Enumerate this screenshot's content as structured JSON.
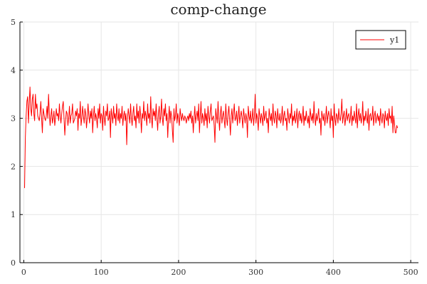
{
  "chart_data": {
    "type": "line",
    "title": "comp-change",
    "xlabel": "",
    "ylabel": "",
    "xlim": [
      -5,
      510
    ],
    "ylim": [
      0,
      5
    ],
    "xticks": [
      0,
      100,
      200,
      300,
      400,
      500
    ],
    "yticks": [
      0,
      1,
      2,
      3,
      4,
      5
    ],
    "grid": true,
    "legend_position": "top-right",
    "series": [
      {
        "name": "y1",
        "color": "#ff0000",
        "x_start": 1,
        "x_step": 1,
        "values": [
          1.55,
          2.6,
          3.05,
          3.35,
          3.45,
          2.9,
          3.3,
          3.65,
          3.2,
          3.05,
          3.4,
          3.5,
          3.1,
          2.95,
          3.5,
          3.2,
          3.3,
          3.05,
          3.0,
          2.95,
          3.1,
          3.35,
          3.0,
          2.7,
          3.2,
          3.1,
          3.0,
          2.95,
          3.05,
          3.25,
          3.0,
          3.5,
          3.1,
          2.85,
          3.05,
          3.2,
          2.9,
          3.0,
          3.15,
          2.85,
          3.0,
          3.2,
          3.05,
          3.1,
          2.95,
          3.3,
          3.05,
          2.9,
          3.1,
          3.25,
          3.35,
          3.0,
          2.65,
          2.95,
          3.15,
          3.1,
          2.85,
          3.0,
          3.25,
          2.9,
          3.05,
          3.1,
          3.3,
          2.9,
          2.95,
          3.0,
          3.15,
          3.05,
          3.2,
          2.75,
          3.1,
          3.0,
          3.35,
          2.85,
          3.0,
          3.25,
          3.05,
          2.9,
          3.2,
          3.1,
          2.8,
          3.0,
          3.3,
          3.05,
          2.9,
          3.15,
          3.0,
          3.2,
          2.7,
          3.05,
          3.25,
          2.95,
          3.1,
          3.0,
          2.8,
          3.2,
          3.0,
          3.3,
          2.9,
          3.1,
          3.05,
          2.75,
          3.25,
          3.0,
          2.85,
          3.15,
          3.05,
          3.3,
          2.95,
          3.0,
          3.15,
          2.6,
          3.2,
          3.05,
          2.9,
          3.25,
          3.0,
          3.1,
          2.85,
          3.3,
          3.05,
          2.95,
          3.2,
          2.9,
          3.1,
          3.0,
          3.25,
          2.85,
          3.05,
          3.15,
          2.95,
          3.1,
          2.45,
          3.0,
          3.2,
          3.05,
          2.9,
          3.3,
          3.0,
          2.85,
          3.1,
          3.25,
          2.95,
          3.05,
          2.8,
          3.3,
          3.0,
          3.15,
          2.9,
          3.25,
          3.05,
          2.7,
          3.1,
          3.0,
          3.35,
          2.95,
          3.15,
          3.05,
          2.85,
          3.3,
          3.0,
          3.1,
          2.9,
          3.45,
          3.0,
          2.8,
          3.2,
          3.05,
          3.15,
          2.95,
          3.3,
          3.0,
          2.75,
          3.1,
          3.25,
          2.9,
          3.05,
          3.4,
          3.0,
          2.85,
          3.2,
          3.05,
          3.3,
          2.95,
          3.1,
          2.6,
          3.0,
          3.25,
          2.9,
          3.15,
          3.05,
          2.75,
          2.5,
          3.2,
          2.95,
          3.05,
          3.3,
          2.9,
          3.1,
          3.0,
          2.85,
          3.2,
          3.05,
          2.95,
          3.1,
          3.0,
          2.95,
          3.05,
          3.0,
          2.9,
          3.0,
          3.05,
          2.95,
          3.1,
          3.0,
          3.15,
          2.9,
          3.05,
          2.7,
          3.0,
          3.25,
          2.9,
          3.05,
          3.15,
          2.95,
          3.3,
          2.7,
          3.05,
          3.35,
          2.9,
          3.1,
          3.0,
          2.85,
          3.2,
          2.95,
          3.1,
          2.8,
          3.25,
          3.05,
          2.9,
          3.15,
          3.3,
          2.95,
          3.0,
          3.05,
          2.85,
          2.5,
          3.2,
          3.05,
          2.9,
          3.35,
          3.0,
          2.75,
          3.1,
          3.25,
          2.9,
          3.05,
          3.15,
          2.95,
          2.8,
          3.3,
          3.0,
          2.85,
          3.1,
          3.25,
          2.95,
          2.65,
          3.05,
          3.2,
          2.9,
          3.1,
          3.3,
          2.95,
          3.0,
          3.15,
          2.85,
          3.05,
          3.25,
          2.9,
          3.05,
          3.15,
          3.0,
          2.8,
          3.2,
          3.05,
          2.9,
          3.1,
          3.0,
          2.6,
          3.25,
          3.05,
          2.95,
          3.15,
          2.9,
          3.0,
          3.2,
          2.85,
          3.05,
          3.5,
          2.9,
          3.1,
          3.0,
          2.75,
          3.2,
          3.05,
          2.9,
          3.1,
          3.0,
          2.85,
          3.25,
          2.95,
          3.05,
          3.15,
          2.9,
          3.0,
          2.7,
          3.2,
          3.05,
          2.95,
          3.1,
          2.85,
          3.3,
          3.0,
          2.9,
          3.15,
          3.05,
          2.8,
          3.2,
          3.0,
          2.95,
          3.1,
          2.9,
          3.0,
          3.25,
          2.85,
          3.05,
          3.15,
          2.95,
          3.0,
          2.75,
          3.2,
          3.05,
          2.9,
          3.1,
          3.0,
          3.3,
          2.85,
          3.05,
          2.95,
          3.15,
          2.9,
          3.0,
          3.2,
          2.8,
          3.05,
          3.15,
          2.95,
          3.1,
          2.9,
          3.0,
          3.25,
          2.85,
          3.05,
          2.95,
          3.15,
          3.0,
          2.9,
          3.05,
          2.8,
          3.2,
          3.05,
          2.95,
          3.1,
          2.9,
          3.35,
          3.0,
          2.85,
          3.1,
          2.95,
          3.05,
          3.2,
          2.9,
          3.0,
          2.65,
          3.15,
          3.05,
          2.95,
          3.1,
          2.85,
          3.0,
          3.25,
          2.9,
          3.05,
          3.15,
          3.0,
          2.8,
          3.2,
          2.95,
          3.05,
          2.6,
          3.3,
          3.0,
          2.85,
          3.1,
          3.05,
          2.9,
          3.2,
          3.0,
          2.95,
          3.1,
          3.4,
          2.9,
          3.05,
          3.15,
          2.85,
          3.0,
          3.2,
          2.95,
          3.05,
          3.1,
          2.9,
          3.0,
          3.25,
          2.85,
          3.05,
          2.95,
          3.15,
          3.0,
          2.9,
          3.3,
          2.8,
          3.05,
          3.2,
          2.95,
          3.1,
          2.9,
          3.0,
          3.35,
          2.85,
          3.05,
          2.95,
          3.15,
          3.0,
          2.9,
          3.2,
          2.75,
          3.05,
          3.1,
          2.95,
          3.0,
          3.25,
          2.85,
          3.05,
          3.15,
          2.9,
          3.0,
          3.1,
          2.95,
          3.05,
          2.85,
          3.2,
          3.0,
          2.9,
          3.1,
          3.05,
          2.8,
          3.15,
          3.0,
          2.95,
          3.1,
          2.85,
          3.2,
          3.0,
          3.05,
          2.9,
          3.25,
          2.7,
          3.05,
          2.9,
          2.7,
          2.7,
          2.85,
          2.8
        ]
      }
    ]
  }
}
